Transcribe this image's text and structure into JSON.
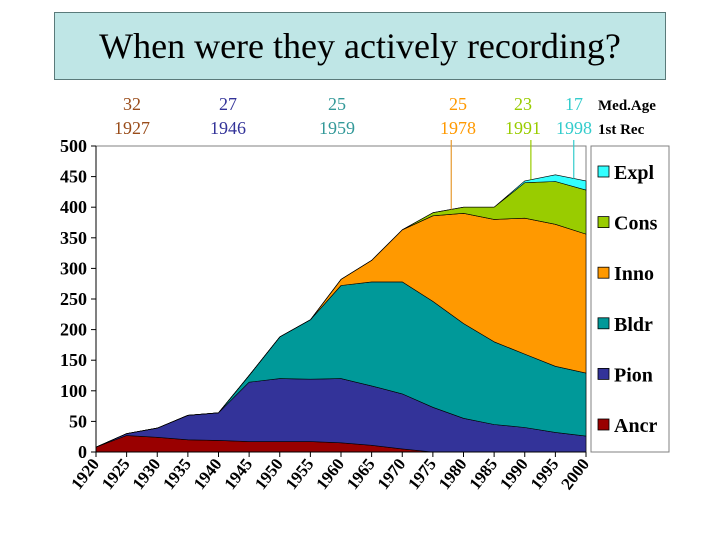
{
  "chart_data": {
    "type": "area",
    "stacked": true,
    "title": "When were they actively recording?",
    "x": [
      1920,
      1925,
      1930,
      1935,
      1940,
      1945,
      1950,
      1955,
      1960,
      1965,
      1970,
      1975,
      1980,
      1985,
      1990,
      1995,
      2000
    ],
    "x_tick_labels": [
      "1920",
      "1925",
      "1930",
      "1935",
      "1940",
      "1945",
      "1950",
      "1955",
      "1960",
      "1965",
      "1970",
      "1975",
      "1980",
      "1985",
      "1990",
      "1995",
      "2000"
    ],
    "ylim": [
      0,
      500
    ],
    "y_ticks": [
      0,
      50,
      100,
      150,
      200,
      250,
      300,
      350,
      400,
      450,
      500
    ],
    "y_tick_labels": [
      "0",
      "50",
      "100",
      "150",
      "200",
      "250",
      "300",
      "350",
      "400",
      "450",
      "500"
    ],
    "xlabel": "",
    "ylabel": "",
    "series": [
      {
        "name": "Ancr",
        "color": "#990000",
        "values": [
          8,
          27,
          24,
          20,
          19,
          17,
          17,
          17,
          15,
          11,
          5,
          0,
          0,
          0,
          0,
          0,
          0
        ]
      },
      {
        "name": "Pion",
        "color": "#333399",
        "values": [
          0,
          3,
          15,
          40,
          45,
          97,
          103,
          102,
          105,
          97,
          90,
          73,
          55,
          45,
          40,
          32,
          26
        ]
      },
      {
        "name": "Bldr",
        "color": "#009999",
        "values": [
          0,
          0,
          0,
          0,
          0,
          11,
          68,
          97,
          152,
          170,
          183,
          173,
          155,
          135,
          120,
          108,
          103
        ]
      },
      {
        "name": "Inno",
        "color": "#ff9900",
        "values": [
          0,
          0,
          0,
          0,
          0,
          0,
          0,
          0,
          10,
          35,
          85,
          140,
          180,
          200,
          222,
          232,
          227
        ]
      },
      {
        "name": "Cons",
        "color": "#99cc00",
        "values": [
          0,
          0,
          0,
          0,
          0,
          0,
          0,
          0,
          0,
          0,
          0,
          5,
          10,
          20,
          58,
          70,
          72
        ]
      },
      {
        "name": "Expl",
        "color": "#33ffff",
        "values": [
          0,
          0,
          0,
          0,
          0,
          0,
          0,
          0,
          0,
          0,
          0,
          0,
          0,
          0,
          3,
          11,
          15
        ]
      }
    ],
    "legend_placement": "right",
    "grid": false,
    "annotations": {
      "row_labels": {
        "med_age": "Med.Age",
        "first_rec": "1st Rec"
      },
      "columns": [
        {
          "med_age": "32",
          "first_rec": "1927",
          "color": "#994c1a"
        },
        {
          "med_age": "27",
          "first_rec": "1946",
          "color": "#333399"
        },
        {
          "med_age": "25",
          "first_rec": "1959",
          "color": "#339999"
        },
        {
          "med_age": "25",
          "first_rec": "1978",
          "color": "#ff9900"
        },
        {
          "med_age": "23",
          "first_rec": "1991",
          "color": "#99cc00"
        },
        {
          "med_age": "17",
          "first_rec": "1998",
          "color": "#33cccc"
        }
      ],
      "marker_lines": [
        {
          "x": 1978,
          "color": "#e69a30"
        },
        {
          "x": 1991,
          "color": "#99cc00"
        },
        {
          "x": 1998,
          "color": "#33cccc"
        }
      ]
    }
  }
}
